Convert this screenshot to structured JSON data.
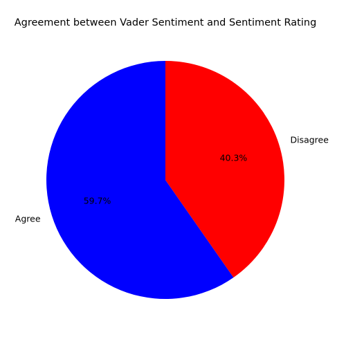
{
  "chart_data": {
    "type": "pie",
    "title": "Agreement between Vader Sentiment and Sentiment Rating",
    "categories": [
      "Agree",
      "Disagree"
    ],
    "values": [
      59.7,
      40.3
    ],
    "percent_labels": [
      "59.7%",
      "40.3%"
    ],
    "colors": [
      "#0000ff",
      "#ff0000"
    ],
    "start_angle_deg": 90,
    "direction": "counterclockwise",
    "legend": "none"
  }
}
